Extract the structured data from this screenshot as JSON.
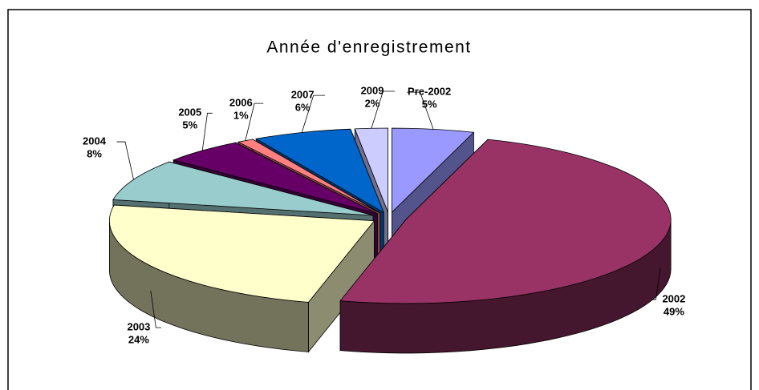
{
  "chart_data": {
    "type": "pie",
    "title": "Année d'enregistrement",
    "categories": [
      "Pre-2002",
      "2002",
      "2003",
      "2004",
      "2005",
      "2006",
      "2007",
      "2009"
    ],
    "values": [
      5,
      49,
      24,
      8,
      5,
      1,
      6,
      2
    ],
    "value_labels": [
      "5%",
      "49%",
      "24%",
      "8%",
      "5%",
      "1%",
      "6%",
      "2%"
    ],
    "colors": [
      "#9999ff",
      "#993366",
      "#ffffcc",
      "#99cccc",
      "#660066",
      "#ff8080",
      "#0066cc",
      "#ccccff"
    ]
  }
}
